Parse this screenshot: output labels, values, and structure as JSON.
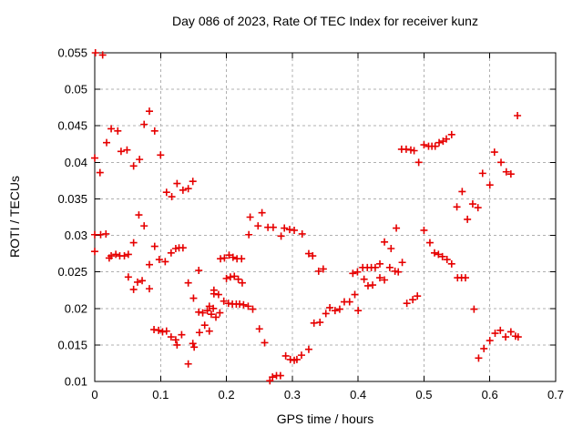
{
  "window": {
    "background": "#ffffff"
  },
  "colors": {
    "marker": "#e60000",
    "grid": "#b0b0b0",
    "axis": "#000000",
    "text": "#000000"
  },
  "chart_data": {
    "type": "scatter",
    "title": "Day 086 of 2023, Rate Of TEC Index for receiver kunz",
    "xlabel": "GPS time / hours",
    "ylabel": "ROTI / TECUs",
    "xlim": [
      0,
      0.7
    ],
    "ylim": [
      0.01,
      0.055
    ],
    "grid": true,
    "legend": false,
    "marker": "plus",
    "xticks": {
      "values": [
        0,
        0.1,
        0.2,
        0.3,
        0.4,
        0.5,
        0.6,
        0.7
      ],
      "labels": [
        "0",
        "0.1",
        "0.2",
        "0.3",
        "0.4",
        "0.5",
        "0.6",
        "0.7"
      ]
    },
    "yticks": {
      "values": [
        0.01,
        0.015,
        0.02,
        0.025,
        0.03,
        0.035,
        0.04,
        0.045,
        0.05,
        0.055
      ],
      "labels": [
        "0.01",
        "0.015",
        "0.02",
        "0.025",
        "0.03",
        "0.035",
        "0.04",
        "0.045",
        "0.05",
        "0.055"
      ]
    },
    "series": [
      {
        "points": [
          [
            0.001,
            0.055
          ],
          [
            0.012,
            0.0547
          ],
          [
            0.083,
            0.047
          ],
          [
            0.075,
            0.0452
          ],
          [
            0.025,
            0.0446
          ],
          [
            0.035,
            0.0443
          ],
          [
            0.091,
            0.0443
          ],
          [
            0.018,
            0.0427
          ],
          [
            0.04,
            0.0415
          ],
          [
            0.049,
            0.0417
          ],
          [
            0.1,
            0.041
          ],
          [
            0.068,
            0.0404
          ],
          [
            0,
            0.0406
          ],
          [
            0.059,
            0.0395
          ],
          [
            0.008,
            0.0386
          ],
          [
            0.125,
            0.0371
          ],
          [
            0.149,
            0.0374
          ],
          [
            0.142,
            0.0364
          ],
          [
            0.134,
            0.0362
          ],
          [
            0.109,
            0.0359
          ],
          [
            0.117,
            0.0353
          ],
          [
            0.067,
            0.0328
          ],
          [
            0.236,
            0.0325
          ],
          [
            0.248,
            0.0313
          ],
          [
            0.254,
            0.0331
          ],
          [
            0.234,
            0.0301
          ],
          [
            0.642,
            0.0464
          ],
          [
            0.542,
            0.0438
          ],
          [
            0.534,
            0.0432
          ],
          [
            0.529,
            0.0429
          ],
          [
            0.523,
            0.0427
          ],
          [
            0.517,
            0.0422
          ],
          [
            0.512,
            0.0422
          ],
          [
            0.507,
            0.0422
          ],
          [
            0.5,
            0.0424
          ],
          [
            0.492,
            0.04
          ],
          [
            0.466,
            0.0418
          ],
          [
            0.473,
            0.0418
          ],
          [
            0.48,
            0.0417
          ],
          [
            0.485,
            0.0416
          ],
          [
            0.607,
            0.0414
          ],
          [
            0.617,
            0.04
          ],
          [
            0.625,
            0.0387
          ],
          [
            0.632,
            0.0384
          ],
          [
            0.589,
            0.0385
          ],
          [
            0.6,
            0.0369
          ],
          [
            0.558,
            0.036
          ],
          [
            0.55,
            0.0339
          ],
          [
            0.574,
            0.0343
          ],
          [
            0.582,
            0.0338
          ],
          [
            0.566,
            0.0322
          ],
          [
            0.075,
            0.0313
          ],
          [
            0,
            0.0301
          ],
          [
            0.009,
            0.0301
          ],
          [
            0.017,
            0.0302
          ],
          [
            0.059,
            0.029
          ],
          [
            0,
            0.0278
          ],
          [
            0.025,
            0.0272
          ],
          [
            0.022,
            0.0269
          ],
          [
            0.032,
            0.0274
          ],
          [
            0.038,
            0.0272
          ],
          [
            0.045,
            0.0272
          ],
          [
            0.051,
            0.0274
          ],
          [
            0.091,
            0.0285
          ],
          [
            0.098,
            0.0267
          ],
          [
            0.107,
            0.0264
          ],
          [
            0.083,
            0.026
          ],
          [
            0.116,
            0.0276
          ],
          [
            0.123,
            0.0282
          ],
          [
            0.128,
            0.0283
          ],
          [
            0.134,
            0.0283
          ],
          [
            0.158,
            0.0252
          ],
          [
            0.142,
            0.0235
          ],
          [
            0.051,
            0.0243
          ],
          [
            0.065,
            0.0236
          ],
          [
            0.072,
            0.0238
          ],
          [
            0.059,
            0.0226
          ],
          [
            0.083,
            0.0227
          ],
          [
            0.15,
            0.0214
          ],
          [
            0.191,
            0.0268
          ],
          [
            0.197,
            0.0269
          ],
          [
            0.204,
            0.0273
          ],
          [
            0.21,
            0.027
          ],
          [
            0.216,
            0.0268
          ],
          [
            0.223,
            0.0268
          ],
          [
            0.2,
            0.0241
          ],
          [
            0.206,
            0.0243
          ],
          [
            0.212,
            0.0244
          ],
          [
            0.218,
            0.024
          ],
          [
            0.224,
            0.0235
          ],
          [
            0.181,
            0.0225
          ],
          [
            0.181,
            0.022
          ],
          [
            0.188,
            0.0219
          ],
          [
            0.196,
            0.021
          ],
          [
            0.174,
            0.0203
          ],
          [
            0.18,
            0.02
          ],
          [
            0.203,
            0.0207
          ],
          [
            0.209,
            0.0206
          ],
          [
            0.215,
            0.0206
          ],
          [
            0.22,
            0.0206
          ],
          [
            0.226,
            0.0205
          ],
          [
            0.233,
            0.0203
          ],
          [
            0.24,
            0.0199
          ],
          [
            0.19,
            0.0194
          ],
          [
            0.158,
            0.0195
          ],
          [
            0.164,
            0.0194
          ],
          [
            0.171,
            0.0197
          ],
          [
            0.177,
            0.0192
          ],
          [
            0.184,
            0.0188
          ],
          [
            0.167,
            0.0177
          ],
          [
            0.174,
            0.0169
          ],
          [
            0.159,
            0.0167
          ],
          [
            0.09,
            0.0171
          ],
          [
            0.097,
            0.017
          ],
          [
            0.103,
            0.0168
          ],
          [
            0.109,
            0.0169
          ],
          [
            0.116,
            0.0161
          ],
          [
            0.123,
            0.0157
          ],
          [
            0.132,
            0.0164
          ],
          [
            0.125,
            0.015
          ],
          [
            0.149,
            0.0152
          ],
          [
            0.151,
            0.0147
          ],
          [
            0.142,
            0.0124
          ],
          [
            0.263,
            0.0311
          ],
          [
            0.271,
            0.0311
          ],
          [
            0.283,
            0.0299
          ],
          [
            0.288,
            0.031
          ],
          [
            0.296,
            0.0308
          ],
          [
            0.303,
            0.0307
          ],
          [
            0.315,
            0.0302
          ],
          [
            0.325,
            0.0275
          ],
          [
            0.331,
            0.0272
          ],
          [
            0.34,
            0.0251
          ],
          [
            0.347,
            0.0254
          ],
          [
            0.25,
            0.0172
          ],
          [
            0.258,
            0.0153
          ],
          [
            0.266,
            0.0101
          ],
          [
            0.27,
            0.0106
          ],
          [
            0.276,
            0.0108
          ],
          [
            0.282,
            0.0108
          ],
          [
            0.29,
            0.0135
          ],
          [
            0.297,
            0.013
          ],
          [
            0.303,
            0.0129
          ],
          [
            0.307,
            0.013
          ],
          [
            0.314,
            0.0136
          ],
          [
            0.325,
            0.0144
          ],
          [
            0.333,
            0.018
          ],
          [
            0.342,
            0.0181
          ],
          [
            0.351,
            0.0193
          ],
          [
            0.357,
            0.0201
          ],
          [
            0.365,
            0.0197
          ],
          [
            0.372,
            0.0199
          ],
          [
            0.379,
            0.0209
          ],
          [
            0.387,
            0.0209
          ],
          [
            0.395,
            0.0219
          ],
          [
            0.4,
            0.0197
          ],
          [
            0.392,
            0.0248
          ],
          [
            0.399,
            0.025
          ],
          [
            0.407,
            0.0256
          ],
          [
            0.414,
            0.0256
          ],
          [
            0.42,
            0.0256
          ],
          [
            0.426,
            0.0256
          ],
          [
            0.409,
            0.024
          ],
          [
            0.415,
            0.0231
          ],
          [
            0.422,
            0.0232
          ],
          [
            0.433,
            0.0242
          ],
          [
            0.44,
            0.0239
          ],
          [
            0.448,
            0.0256
          ],
          [
            0.456,
            0.0251
          ],
          [
            0.461,
            0.025
          ],
          [
            0.433,
            0.0261
          ],
          [
            0.44,
            0.0291
          ],
          [
            0.45,
            0.0282
          ],
          [
            0.458,
            0.031
          ],
          [
            0.467,
            0.0263
          ],
          [
            0.5,
            0.0307
          ],
          [
            0.509,
            0.029
          ],
          [
            0.516,
            0.0276
          ],
          [
            0.522,
            0.0274
          ],
          [
            0.528,
            0.0271
          ],
          [
            0.535,
            0.0267
          ],
          [
            0.542,
            0.0261
          ],
          [
            0.551,
            0.0242
          ],
          [
            0.557,
            0.0242
          ],
          [
            0.563,
            0.0242
          ],
          [
            0.49,
            0.0217
          ],
          [
            0.483,
            0.0212
          ],
          [
            0.474,
            0.0207
          ],
          [
            0.576,
            0.0199
          ],
          [
            0.6,
            0.0156
          ],
          [
            0.591,
            0.0145
          ],
          [
            0.583,
            0.0132
          ],
          [
            0.608,
            0.0166
          ],
          [
            0.616,
            0.017
          ],
          [
            0.624,
            0.0161
          ],
          [
            0.632,
            0.0168
          ],
          [
            0.639,
            0.0162
          ],
          [
            0.643,
            0.0161
          ]
        ]
      }
    ]
  }
}
